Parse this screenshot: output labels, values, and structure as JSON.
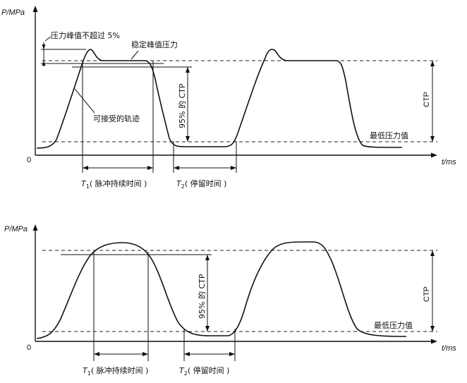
{
  "diagram_top": {
    "y_axis_label": "P/MPa",
    "x_axis_label": "t/ms",
    "origin_label": "0",
    "annot_peak_limit": "压力峰值不超过 5%",
    "annot_stable_peak": "稳定峰值压力",
    "annot_acceptable_trace": "可接受的轨迹",
    "annot_95_ctp": "95% 的 CTP",
    "annot_ctp": "CTP",
    "annot_min_pressure": "最低压力值",
    "t1_symbol": "T",
    "t1_sub": "1",
    "t1_text": "( 脉冲持续时间 )",
    "t2_symbol": "T",
    "t2_sub": "2",
    "t2_text": "( 停留时间 )"
  },
  "diagram_bottom": {
    "y_axis_label": "P/MPa",
    "x_axis_label": "t/ms",
    "origin_label": "0",
    "annot_95_ctp": "95% 的 CTP",
    "annot_ctp": "CTP",
    "annot_min_pressure": "最低压力值",
    "t1_symbol": "T",
    "t1_sub": "1",
    "t1_text": "( 脉冲持续时间 )",
    "t2_symbol": "T",
    "t2_sub": "2",
    "t2_text": "( 停留时间 )"
  }
}
